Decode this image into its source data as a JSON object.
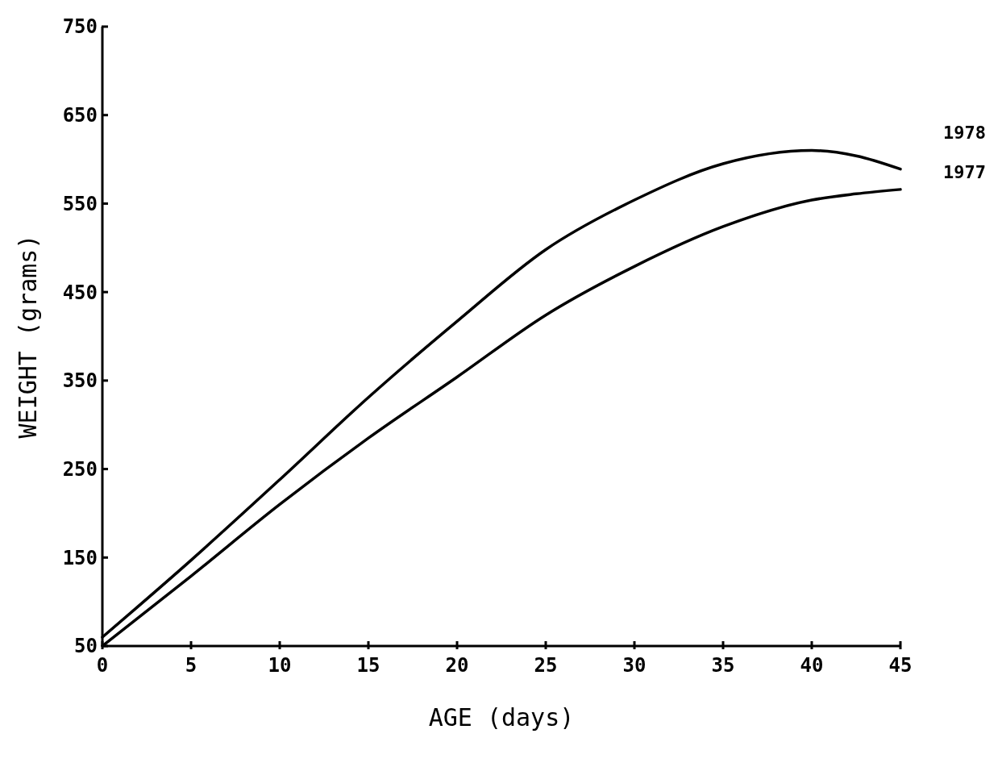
{
  "chart_data": {
    "type": "line",
    "xlabel": "AGE (days)",
    "ylabel": "WEIGHT (grams)",
    "x": [
      0,
      5,
      10,
      15,
      20,
      25,
      30,
      35,
      40,
      42.5,
      45
    ],
    "series": [
      {
        "name": "1978",
        "color": "#000000",
        "values": [
          60,
          147,
          238,
          331,
          417,
          498,
          554,
          595,
          610,
          604,
          589
        ]
      },
      {
        "name": "1977",
        "color": "#000000",
        "values": [
          50,
          129,
          210,
          285,
          354,
          424,
          479,
          524,
          554,
          561,
          566
        ]
      }
    ],
    "xlim": [
      0,
      45
    ],
    "xticks": [
      0,
      5,
      10,
      15,
      20,
      25,
      30,
      35,
      40,
      45
    ],
    "ylim": [
      50,
      750
    ],
    "yticks": [
      50,
      150,
      250,
      350,
      450,
      550,
      650,
      750
    ],
    "grid": false,
    "legend": false,
    "marker": "none",
    "line_style": "solid"
  }
}
